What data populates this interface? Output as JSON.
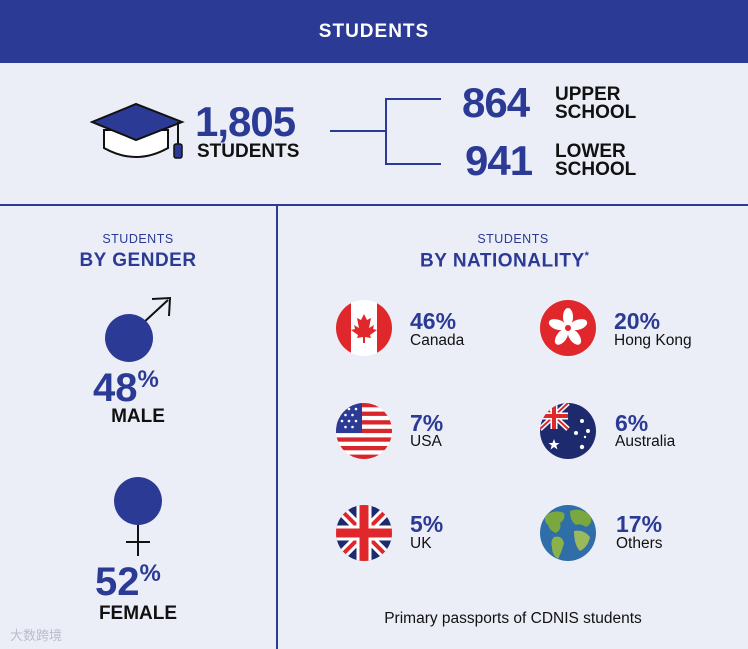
{
  "header": {
    "title": "STUDENTS"
  },
  "total": {
    "count": "1,805",
    "label": "STUDENTS"
  },
  "upper": {
    "count": "864",
    "label_line1": "UPPER",
    "label_line2": "SCHOOL"
  },
  "lower": {
    "count": "941",
    "label_line1": "LOWER",
    "label_line2": "SCHOOL"
  },
  "gender": {
    "kicker": "STUDENTS",
    "heading": "BY GENDER",
    "male": {
      "value": "48",
      "unit": "%",
      "label": "MALE"
    },
    "female": {
      "value": "52",
      "unit": "%",
      "label": "FEMALE"
    }
  },
  "nationality": {
    "kicker": "STUDENTS",
    "heading": "BY NATIONALITY",
    "asterisk": "*",
    "items": [
      {
        "pct": "46%",
        "country": "Canada",
        "icon": "canada-flag-icon"
      },
      {
        "pct": "20%",
        "country": "Hong Kong",
        "icon": "hong-kong-flag-icon"
      },
      {
        "pct": "7%",
        "country": "USA",
        "icon": "usa-flag-icon"
      },
      {
        "pct": "6%",
        "country": "Australia",
        "icon": "australia-flag-icon"
      },
      {
        "pct": "5%",
        "country": "UK",
        "icon": "uk-flag-icon"
      },
      {
        "pct": "17%",
        "country": "Others",
        "icon": "globe-icon"
      }
    ],
    "footnote": "Primary passports of CDNIS students"
  },
  "watermark": "大数跨境",
  "colors": {
    "navy": "#2b3a94",
    "background": "#eceef7",
    "red": "#e0272c"
  }
}
